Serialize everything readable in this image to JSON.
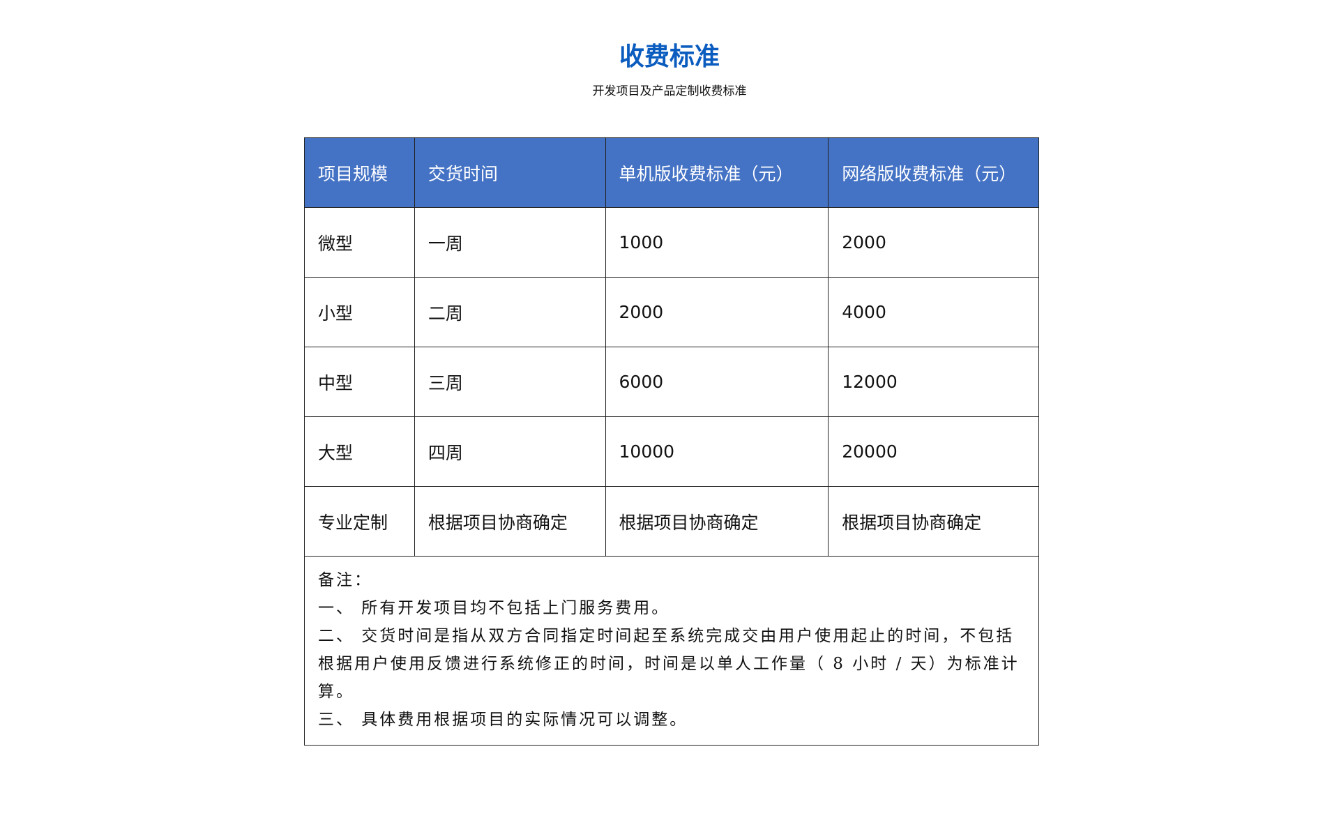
{
  "title": "收费标准",
  "subtitle": "开发项目及产品定制收费标准",
  "colors": {
    "title": "#0b5cbf",
    "header_bg": "#4472c4"
  },
  "table": {
    "headers": [
      "项目规模",
      "交货时间",
      "单机版收费标准（元）",
      "网络版收费标准（元）"
    ],
    "rows": [
      [
        "微型",
        "一周",
        "1000",
        "2000"
      ],
      [
        "小型",
        "二周",
        "2000",
        "4000"
      ],
      [
        "中型",
        "三周",
        "6000",
        "12000"
      ],
      [
        "大型",
        "四周",
        "10000",
        "20000"
      ],
      [
        "专业定制",
        "根据项目协商确定",
        "根据项目协商确定",
        "根据项目协商确定"
      ]
    ]
  },
  "notes": {
    "heading": "备注：",
    "items": [
      "一、 所有开发项目均不包括上门服务费用。",
      "二、 交货时间是指从双方合同指定时间起至系统完成交由用户使用起止的时间，不包括根据用户使用反馈进行系统修正的时间，时间是以单人工作量（ 8 小时 / 天）为标准计算。",
      "三、 具体费用根据项目的实际情况可以调整。"
    ]
  }
}
